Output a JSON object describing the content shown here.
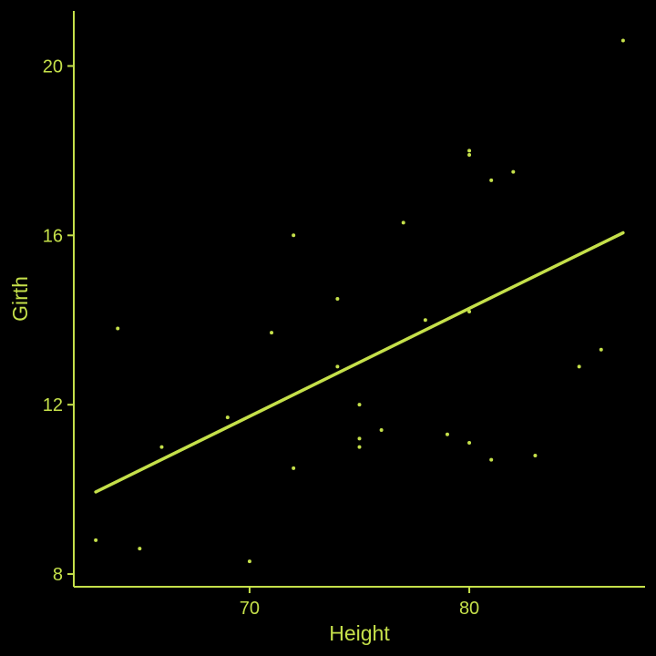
{
  "chart_data": {
    "type": "scatter",
    "title": "",
    "xlabel": "Height",
    "ylabel": "Girth",
    "xlim": [
      62,
      88
    ],
    "ylim": [
      7.7,
      21.3
    ],
    "xticks": [
      70,
      80
    ],
    "yticks": [
      8,
      12,
      16,
      20
    ],
    "xtick_labels": [
      "70",
      "80"
    ],
    "ytick_labels": [
      "8",
      "12",
      "16",
      "20"
    ],
    "grid": false,
    "color": "#c5e04a",
    "background": "#000000",
    "points": [
      {
        "x": 63,
        "y": 8.8
      },
      {
        "x": 64,
        "y": 13.8
      },
      {
        "x": 65,
        "y": 8.6
      },
      {
        "x": 66,
        "y": 11.0
      },
      {
        "x": 69,
        "y": 11.7
      },
      {
        "x": 70,
        "y": 8.3
      },
      {
        "x": 71,
        "y": 13.7
      },
      {
        "x": 72,
        "y": 10.5
      },
      {
        "x": 72,
        "y": 16.0
      },
      {
        "x": 74,
        "y": 14.5
      },
      {
        "x": 74,
        "y": 12.9
      },
      {
        "x": 75,
        "y": 12.0
      },
      {
        "x": 75,
        "y": 11.2
      },
      {
        "x": 75,
        "y": 11.0
      },
      {
        "x": 76,
        "y": 11.4
      },
      {
        "x": 77,
        "y": 16.3
      },
      {
        "x": 78,
        "y": 14.0
      },
      {
        "x": 79,
        "y": 11.3
      },
      {
        "x": 80,
        "y": 18.0
      },
      {
        "x": 80,
        "y": 17.9
      },
      {
        "x": 80,
        "y": 14.2
      },
      {
        "x": 80,
        "y": 11.1
      },
      {
        "x": 81,
        "y": 17.3
      },
      {
        "x": 81,
        "y": 10.7
      },
      {
        "x": 82,
        "y": 17.5
      },
      {
        "x": 83,
        "y": 10.8
      },
      {
        "x": 85,
        "y": 12.9
      },
      {
        "x": 86,
        "y": 13.3
      },
      {
        "x": 87,
        "y": 20.6
      }
    ],
    "trend_line": {
      "x": [
        63,
        87
      ],
      "y": [
        9.94,
        16.06
      ]
    }
  }
}
